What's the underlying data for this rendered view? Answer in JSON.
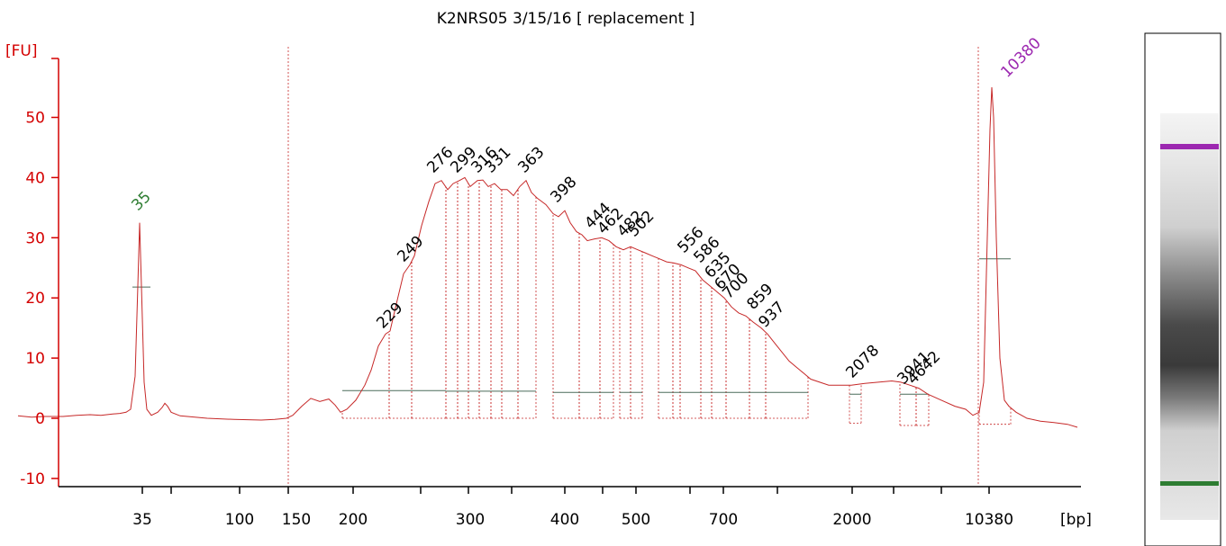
{
  "chart_data": {
    "type": "line",
    "title": "K2NRS05 3/15/16  [ replacement ]",
    "ylabel": "[FU]",
    "xlabel": "[bp]",
    "ylim": [
      -11,
      57
    ],
    "y_ticks": [
      -10,
      0,
      10,
      20,
      30,
      40,
      50
    ],
    "x_tick_labels": [
      "35",
      "100",
      "150",
      "200",
      "300",
      "400",
      "500",
      "700",
      "2000",
      "10380"
    ],
    "grid": false,
    "colors": {
      "trace": "#c62828",
      "axis": "#d40000",
      "lower_marker": "#2e7d32",
      "upper_marker": "#9c27b0",
      "peak_label": "#000000"
    },
    "series": [
      {
        "values": [
          [
            20,
            0.4
          ],
          [
            35,
            0.2
          ],
          [
            50,
            0.3
          ],
          [
            70,
            0.3
          ],
          [
            85,
            0.5
          ],
          [
            100,
            0.6
          ],
          [
            112,
            0.5
          ],
          [
            125,
            0.7
          ],
          [
            133,
            0.8
          ],
          [
            140,
            1.0
          ],
          [
            145,
            1.5
          ],
          [
            150,
            7.0
          ],
          [
            153,
            22.0
          ],
          [
            155,
            32.5
          ],
          [
            157,
            22.0
          ],
          [
            160,
            6.0
          ],
          [
            163,
            1.5
          ],
          [
            168,
            0.5
          ],
          [
            175,
            1.0
          ],
          [
            180,
            1.8
          ],
          [
            183,
            2.5
          ],
          [
            186,
            2.0
          ],
          [
            190,
            1.0
          ],
          [
            200,
            0.4
          ],
          [
            230,
            0.0
          ],
          [
            260,
            -0.2
          ],
          [
            290,
            -0.3
          ],
          [
            305,
            -0.2
          ],
          [
            318,
            0.0
          ],
          [
            325,
            0.5
          ],
          [
            335,
            2.0
          ],
          [
            345,
            3.3
          ],
          [
            355,
            2.8
          ],
          [
            365,
            3.2
          ],
          [
            372,
            2.2
          ],
          [
            378,
            1.0
          ],
          [
            385,
            1.5
          ],
          [
            395,
            3.0
          ],
          [
            405,
            5.5
          ],
          [
            412,
            8.0
          ],
          [
            420,
            12.0
          ],
          [
            428,
            14.0
          ],
          [
            433,
            14.5
          ],
          [
            440,
            19.0
          ],
          [
            448,
            24.0
          ],
          [
            455,
            25.5
          ],
          [
            460,
            27.0
          ],
          [
            468,
            32.0
          ],
          [
            476,
            36.0
          ],
          [
            483,
            39.0
          ],
          [
            490,
            39.5
          ],
          [
            497,
            38.0
          ],
          [
            503,
            39.0
          ],
          [
            510,
            39.5
          ],
          [
            516,
            40.0
          ],
          [
            522,
            38.5
          ],
          [
            530,
            39.5
          ],
          [
            536,
            39.6
          ],
          [
            542,
            38.5
          ],
          [
            549,
            39.0
          ],
          [
            556,
            38.0
          ],
          [
            563,
            38.0
          ],
          [
            570,
            37.0
          ],
          [
            577,
            38.5
          ],
          [
            584,
            39.5
          ],
          [
            590,
            37.5
          ],
          [
            597,
            36.5
          ],
          [
            606,
            35.5
          ],
          [
            614,
            34.0
          ],
          [
            620,
            33.5
          ],
          [
            627,
            34.5
          ],
          [
            633,
            32.5
          ],
          [
            640,
            31.0
          ],
          [
            646,
            30.5
          ],
          [
            652,
            29.5
          ],
          [
            660,
            29.8
          ],
          [
            668,
            30.0
          ],
          [
            676,
            29.5
          ],
          [
            684,
            28.5
          ],
          [
            692,
            28.0
          ],
          [
            700,
            28.5
          ],
          [
            708,
            28.0
          ],
          [
            716,
            27.5
          ],
          [
            724,
            27.0
          ],
          [
            732,
            26.5
          ],
          [
            740,
            26.0
          ],
          [
            748,
            25.8
          ],
          [
            756,
            25.5
          ],
          [
            764,
            25.0
          ],
          [
            772,
            24.5
          ],
          [
            780,
            23.0
          ],
          [
            788,
            22.0
          ],
          [
            796,
            21.0
          ],
          [
            804,
            20.0
          ],
          [
            812,
            18.5
          ],
          [
            820,
            17.5
          ],
          [
            828,
            17.0
          ],
          [
            836,
            16.0
          ],
          [
            845,
            15.0
          ],
          [
            852,
            14.0
          ],
          [
            860,
            12.5
          ],
          [
            868,
            11.0
          ],
          [
            876,
            9.5
          ],
          [
            884,
            8.5
          ],
          [
            892,
            7.5
          ],
          [
            900,
            6.5
          ],
          [
            910,
            6.0
          ],
          [
            920,
            5.5
          ],
          [
            930,
            5.5
          ],
          [
            945,
            5.5
          ],
          [
            960,
            5.8
          ],
          [
            975,
            6.0
          ],
          [
            990,
            6.2
          ],
          [
            1000,
            6.0
          ],
          [
            1010,
            5.5
          ],
          [
            1020,
            5.0
          ],
          [
            1030,
            4.0
          ],
          [
            1045,
            3.0
          ],
          [
            1060,
            2.0
          ],
          [
            1072,
            1.5
          ],
          [
            1080,
            0.5
          ],
          [
            1087,
            1.0
          ],
          [
            1092,
            6.0
          ],
          [
            1096,
            30.0
          ],
          [
            1099,
            48.0
          ],
          [
            1101,
            55.0
          ],
          [
            1103,
            50.0
          ],
          [
            1106,
            30.0
          ],
          [
            1110,
            10.0
          ],
          [
            1115,
            3.0
          ],
          [
            1120,
            2.0
          ],
          [
            1128,
            1.0
          ],
          [
            1140,
            0.0
          ],
          [
            1155,
            -0.5
          ],
          [
            1170,
            -0.7
          ],
          [
            1185,
            -1.0
          ],
          [
            1196,
            -1.5
          ]
        ]
      }
    ],
    "peak_labels": [
      "35",
      "229",
      "249",
      "276",
      "299",
      "316",
      "331",
      "363",
      "398",
      "444",
      "462",
      "482",
      "502",
      "556",
      "586",
      "635",
      "670",
      "700",
      "859",
      "937",
      "2078",
      "3941",
      "4642",
      "10380"
    ],
    "gel": {
      "upper_marker_color": "#9c27b0",
      "lower_marker_color": "#2e7d32"
    }
  }
}
